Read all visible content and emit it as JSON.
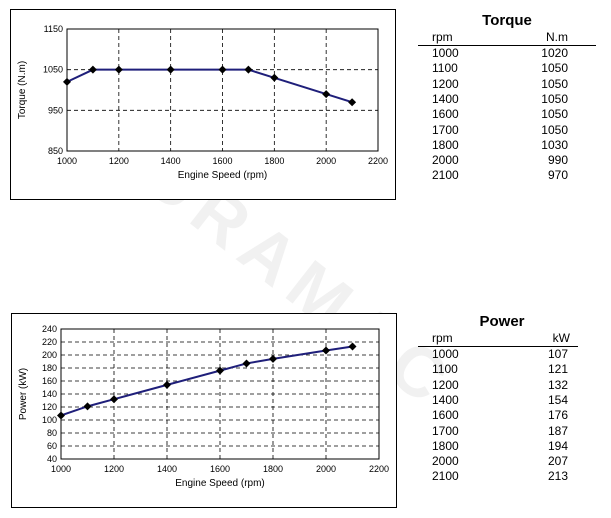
{
  "chart_data": [
    {
      "type": "line",
      "xlabel": "Engine Speed (rpm)",
      "ylabel": "Torque (N.m)",
      "xlim": [
        1000,
        2200
      ],
      "ylim": [
        850,
        1150
      ],
      "xticks": [
        1000,
        1200,
        1400,
        1600,
        1800,
        2000,
        2200
      ],
      "yticks": [
        850,
        950,
        1050,
        1150
      ],
      "grid": true,
      "x": [
        1000,
        1100,
        1200,
        1400,
        1600,
        1700,
        1800,
        2000,
        2100
      ],
      "series": [
        {
          "values": [
            1020,
            1050,
            1050,
            1050,
            1050,
            1050,
            1030,
            990,
            970
          ]
        }
      ],
      "color": "#1f1f7a"
    },
    {
      "type": "line",
      "xlabel": "Engine Speed (rpm)",
      "ylabel": "Power (kW)",
      "xlim": [
        1000,
        2200
      ],
      "ylim": [
        40,
        240
      ],
      "xticks": [
        1000,
        1200,
        1400,
        1600,
        1800,
        2000,
        2200
      ],
      "yticks": [
        40,
        60,
        80,
        100,
        120,
        140,
        160,
        180,
        200,
        220,
        240
      ],
      "grid": true,
      "x": [
        1000,
        1100,
        1200,
        1400,
        1600,
        1700,
        1800,
        2000,
        2100
      ],
      "series": [
        {
          "values": [
            107,
            121,
            132,
            154,
            176,
            187,
            194,
            207,
            213
          ]
        }
      ],
      "color": "#1f1f7a"
    }
  ],
  "torque_table": {
    "title": "Torque",
    "col1": "rpm",
    "col2": "N.m",
    "rows": [
      [
        "1000",
        "1020"
      ],
      [
        "1100",
        "1050"
      ],
      [
        "1200",
        "1050"
      ],
      [
        "1400",
        "1050"
      ],
      [
        "1600",
        "1050"
      ],
      [
        "1700",
        "1050"
      ],
      [
        "1800",
        "1030"
      ],
      [
        "2000",
        "990"
      ],
      [
        "2100",
        "970"
      ]
    ]
  },
  "power_table": {
    "title": "Power",
    "col1": "rpm",
    "col2": "kW",
    "rows": [
      [
        "1000",
        "107"
      ],
      [
        "1100",
        "121"
      ],
      [
        "1200",
        "132"
      ],
      [
        "1400",
        "154"
      ],
      [
        "1600",
        "176"
      ],
      [
        "1700",
        "187"
      ],
      [
        "1800",
        "194"
      ],
      [
        "2000",
        "207"
      ],
      [
        "2100",
        "213"
      ]
    ]
  },
  "watermark": "DURAMAC"
}
